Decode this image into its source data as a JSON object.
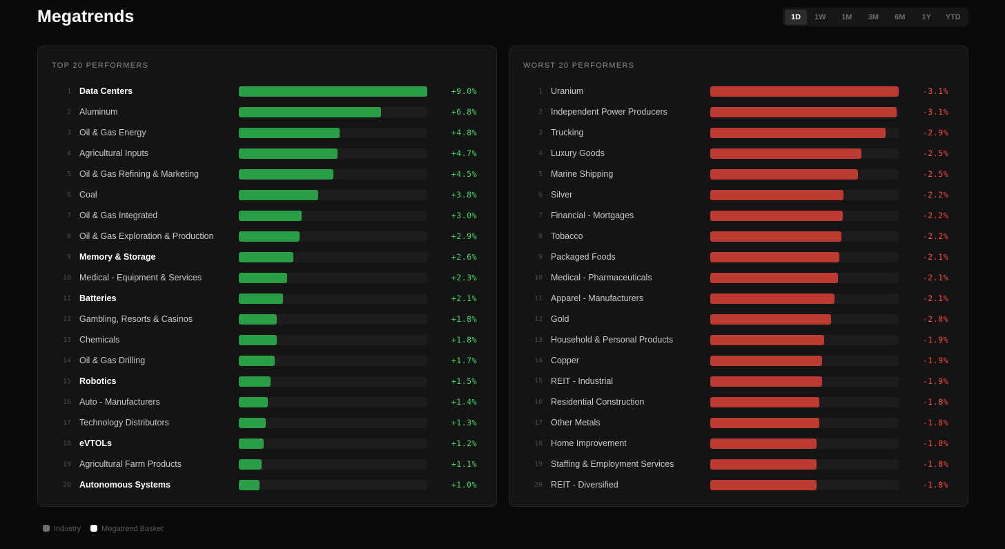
{
  "title": "Megatrends",
  "periods": [
    "1D",
    "1W",
    "1M",
    "3M",
    "6M",
    "1Y",
    "YTD"
  ],
  "active_period": "1D",
  "colors": {
    "positive_bar": "#2a9d47",
    "positive_text": "#3ddc5e",
    "negative_bar": "#bd3a32",
    "negative_text": "#ff4a3d"
  },
  "top": {
    "title": "TOP 20 PERFORMERS",
    "items": [
      {
        "rank": "1",
        "name": "Data Centers",
        "value": 9.0,
        "label": "+9.0%",
        "basket": true
      },
      {
        "rank": "2",
        "name": "Aluminum",
        "value": 6.8,
        "label": "+6.8%",
        "basket": false
      },
      {
        "rank": "3",
        "name": "Oil & Gas Energy",
        "value": 4.8,
        "label": "+4.8%",
        "basket": false
      },
      {
        "rank": "4",
        "name": "Agricultural Inputs",
        "value": 4.7,
        "label": "+4.7%",
        "basket": false
      },
      {
        "rank": "5",
        "name": "Oil & Gas Refining & Marketing",
        "value": 4.5,
        "label": "+4.5%",
        "basket": false
      },
      {
        "rank": "6",
        "name": "Coal",
        "value": 3.8,
        "label": "+3.8%",
        "basket": false
      },
      {
        "rank": "7",
        "name": "Oil & Gas Integrated",
        "value": 3.0,
        "label": "+3.0%",
        "basket": false
      },
      {
        "rank": "8",
        "name": "Oil & Gas Exploration & Production",
        "value": 2.9,
        "label": "+2.9%",
        "basket": false
      },
      {
        "rank": "9",
        "name": "Memory & Storage",
        "value": 2.6,
        "label": "+2.6%",
        "basket": true
      },
      {
        "rank": "10",
        "name": "Medical - Equipment & Services",
        "value": 2.3,
        "label": "+2.3%",
        "basket": false
      },
      {
        "rank": "11",
        "name": "Batteries",
        "value": 2.1,
        "label": "+2.1%",
        "basket": true
      },
      {
        "rank": "12",
        "name": "Gambling, Resorts & Casinos",
        "value": 1.8,
        "label": "+1.8%",
        "basket": false
      },
      {
        "rank": "13",
        "name": "Chemicals",
        "value": 1.8,
        "label": "+1.8%",
        "basket": false
      },
      {
        "rank": "14",
        "name": "Oil & Gas Drilling",
        "value": 1.7,
        "label": "+1.7%",
        "basket": false
      },
      {
        "rank": "15",
        "name": "Robotics",
        "value": 1.5,
        "label": "+1.5%",
        "basket": true
      },
      {
        "rank": "16",
        "name": "Auto - Manufacturers",
        "value": 1.4,
        "label": "+1.4%",
        "basket": false
      },
      {
        "rank": "17",
        "name": "Technology Distributors",
        "value": 1.3,
        "label": "+1.3%",
        "basket": false
      },
      {
        "rank": "18",
        "name": "eVTOLs",
        "value": 1.2,
        "label": "+1.2%",
        "basket": true
      },
      {
        "rank": "19",
        "name": "Agricultural Farm Products",
        "value": 1.1,
        "label": "+1.1%",
        "basket": false
      },
      {
        "rank": "20",
        "name": "Autonomous Systems",
        "value": 1.0,
        "label": "+1.0%",
        "basket": true
      }
    ]
  },
  "worst": {
    "title": "WORST 20 PERFORMERS",
    "items": [
      {
        "rank": "1",
        "name": "Uranium",
        "value": 3.12,
        "label": "-3.1%",
        "basket": false
      },
      {
        "rank": "2",
        "name": "Independent Power Producers",
        "value": 3.09,
        "label": "-3.1%",
        "basket": false
      },
      {
        "rank": "3",
        "name": "Trucking",
        "value": 2.9,
        "label": "-2.9%",
        "basket": false
      },
      {
        "rank": "4",
        "name": "Luxury Goods",
        "value": 2.5,
        "label": "-2.5%",
        "basket": false
      },
      {
        "rank": "5",
        "name": "Marine Shipping",
        "value": 2.45,
        "label": "-2.5%",
        "basket": false
      },
      {
        "rank": "6",
        "name": "Silver",
        "value": 2.2,
        "label": "-2.2%",
        "basket": false
      },
      {
        "rank": "7",
        "name": "Financial - Mortgages",
        "value": 2.19,
        "label": "-2.2%",
        "basket": false
      },
      {
        "rank": "8",
        "name": "Tobacco",
        "value": 2.17,
        "label": "-2.2%",
        "basket": false
      },
      {
        "rank": "9",
        "name": "Packaged Foods",
        "value": 2.14,
        "label": "-2.1%",
        "basket": false
      },
      {
        "rank": "10",
        "name": "Medical - Pharmaceuticals",
        "value": 2.11,
        "label": "-2.1%",
        "basket": false
      },
      {
        "rank": "11",
        "name": "Apparel - Manufacturers",
        "value": 2.06,
        "label": "-2.1%",
        "basket": false
      },
      {
        "rank": "12",
        "name": "Gold",
        "value": 2.0,
        "label": "-2.0%",
        "basket": false
      },
      {
        "rank": "13",
        "name": "Household & Personal Products",
        "value": 1.88,
        "label": "-1.9%",
        "basket": false
      },
      {
        "rank": "14",
        "name": "Copper",
        "value": 1.85,
        "label": "-1.9%",
        "basket": false
      },
      {
        "rank": "15",
        "name": "REIT - Industrial",
        "value": 1.85,
        "label": "-1.9%",
        "basket": false
      },
      {
        "rank": "16",
        "name": "Residential Construction",
        "value": 1.8,
        "label": "-1.8%",
        "basket": false
      },
      {
        "rank": "17",
        "name": "Other Metals",
        "value": 1.8,
        "label": "-1.8%",
        "basket": false
      },
      {
        "rank": "18",
        "name": "Home Improvement",
        "value": 1.76,
        "label": "-1.8%",
        "basket": false
      },
      {
        "rank": "19",
        "name": "Staffing & Employment Services",
        "value": 1.76,
        "label": "-1.8%",
        "basket": false
      },
      {
        "rank": "20",
        "name": "REIT - Diversified",
        "value": 1.76,
        "label": "-1.8%",
        "basket": false
      }
    ]
  },
  "legend": [
    {
      "label": "Industry",
      "color": "#6e6e6e"
    },
    {
      "label": "Megatrend Basket",
      "color": "#ffffff"
    }
  ]
}
